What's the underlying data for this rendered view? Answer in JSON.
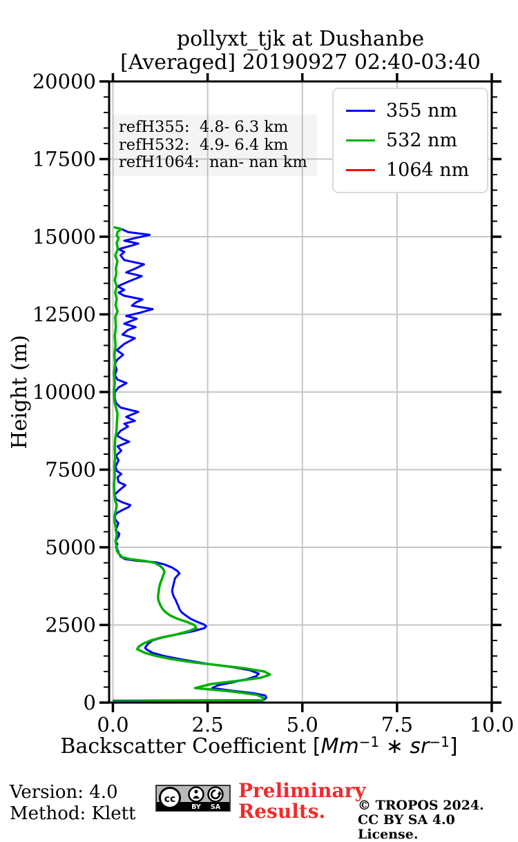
{
  "title": {
    "line1": "pollyxt_tjk at Dushanbe",
    "line2": "[Averaged] 20190927 02:40-03:40"
  },
  "annotation": {
    "lines": [
      "refH355:  4.8- 6.3 km",
      "refH532:  4.9- 6.4 km",
      "refH1064:  nan- nan km"
    ]
  },
  "legend": {
    "items": [
      {
        "label": "355 nm",
        "color": "#0000ff"
      },
      {
        "label": "532 nm",
        "color": "#00b000"
      },
      {
        "label": "1064 nm",
        "color": "#ff0000"
      }
    ]
  },
  "axes": {
    "ylabel": "Height (m)",
    "xlabel_prefix": "Backscatter Coefficient ",
    "xlabel_open": "[",
    "xlabel_m1": "Mm",
    "xlabel_e1": "−1",
    "xlabel_star": " ∗ ",
    "xlabel_m2": "sr",
    "xlabel_e2": "−1",
    "xlabel_close": "]"
  },
  "footer": {
    "version": "Version: 4.0",
    "method": "Method: Klett",
    "badge": "CC BY SA",
    "badge_by": "BY",
    "badge_sa": "SA",
    "prelim_line1": "Preliminary",
    "prelim_line2": "Results.",
    "copyright1": "© TROPOS 2024.",
    "copyright2": "CC BY SA 4.0 License."
  },
  "chart_data": {
    "type": "line",
    "title": "pollyxt_tjk at Dushanbe [Averaged] 20190927 02:40-03:40",
    "xlabel": "Backscatter Coefficient [Mm^-1 * sr^-1]",
    "ylabel": "Height (m)",
    "xlim": [
      -0.1,
      10.0
    ],
    "ylim": [
      0,
      20000
    ],
    "grid": true,
    "grid_color": "#c6c6c6",
    "legend_position": "upper right",
    "xticks": {
      "values": [
        0,
        2.5,
        5.0,
        7.5,
        10.0
      ],
      "labels": [
        "0.0",
        "2.5",
        "5.0",
        "7.5",
        "10.0"
      ]
    },
    "yticks": {
      "values": [
        0,
        2500,
        5000,
        7500,
        10000,
        12500,
        15000,
        17500,
        20000
      ],
      "labels": [
        "0",
        "2500",
        "5000",
        "7500",
        "10000",
        "12500",
        "15000",
        "17500",
        "20000"
      ]
    },
    "yminor_step": 500,
    "series": [
      {
        "name": "355 nm",
        "color": "#0000ff",
        "width": 3,
        "points_h_v": [
          [
            60,
            0.02
          ],
          [
            75,
            3.95
          ],
          [
            100,
            4.0
          ],
          [
            160,
            4.05
          ],
          [
            230,
            4.02
          ],
          [
            300,
            3.72
          ],
          [
            380,
            3.15
          ],
          [
            470,
            2.62
          ],
          [
            560,
            2.78
          ],
          [
            650,
            3.15
          ],
          [
            760,
            3.55
          ],
          [
            850,
            3.78
          ],
          [
            930,
            3.85
          ],
          [
            1040,
            3.62
          ],
          [
            1140,
            3.15
          ],
          [
            1250,
            2.5
          ],
          [
            1380,
            1.85
          ],
          [
            1500,
            1.35
          ],
          [
            1600,
            1.05
          ],
          [
            1700,
            0.9
          ],
          [
            1760,
            0.85
          ],
          [
            1820,
            0.88
          ],
          [
            1900,
            0.93
          ],
          [
            2000,
            1.05
          ],
          [
            2100,
            1.32
          ],
          [
            2200,
            1.72
          ],
          [
            2300,
            2.12
          ],
          [
            2400,
            2.42
          ],
          [
            2460,
            2.46
          ],
          [
            2520,
            2.4
          ],
          [
            2600,
            2.22
          ],
          [
            2700,
            2.05
          ],
          [
            2800,
            1.93
          ],
          [
            2900,
            1.82
          ],
          [
            3000,
            1.76
          ],
          [
            3100,
            1.73
          ],
          [
            3200,
            1.69
          ],
          [
            3300,
            1.66
          ],
          [
            3400,
            1.61
          ],
          [
            3500,
            1.58
          ],
          [
            3600,
            1.56
          ],
          [
            3700,
            1.58
          ],
          [
            3800,
            1.6
          ],
          [
            3900,
            1.62
          ],
          [
            4000,
            1.64
          ],
          [
            4100,
            1.71
          ],
          [
            4160,
            1.76
          ],
          [
            4250,
            1.69
          ],
          [
            4350,
            1.56
          ],
          [
            4450,
            1.36
          ],
          [
            4520,
            1.12
          ],
          [
            4570,
            0.62
          ],
          [
            4620,
            0.32
          ],
          [
            4700,
            0.2
          ],
          [
            4800,
            0.16
          ],
          [
            4900,
            0.13
          ],
          [
            5000,
            0.08
          ],
          [
            5100,
            0.12
          ],
          [
            5200,
            0.07
          ],
          [
            5350,
            0.15
          ],
          [
            5440,
            0.17
          ],
          [
            5550,
            0.07
          ],
          [
            5700,
            0.12
          ],
          [
            5780,
            0.14
          ],
          [
            5900,
            0.06
          ],
          [
            6000,
            0.05
          ],
          [
            6100,
            0.1
          ],
          [
            6200,
            0.25
          ],
          [
            6300,
            0.42
          ],
          [
            6360,
            0.46
          ],
          [
            6450,
            0.25
          ],
          [
            6550,
            0.08
          ],
          [
            6700,
            0.05
          ],
          [
            6850,
            0.18
          ],
          [
            7000,
            0.33
          ],
          [
            7100,
            0.15
          ],
          [
            7250,
            0.12
          ],
          [
            7360,
            0.22
          ],
          [
            7460,
            0.1
          ],
          [
            7600,
            0.07
          ],
          [
            7800,
            0.15
          ],
          [
            7950,
            0.08
          ],
          [
            8110,
            0.22
          ],
          [
            8250,
            0.12
          ],
          [
            8400,
            0.43
          ],
          [
            8480,
            0.27
          ],
          [
            8600,
            0.1
          ],
          [
            8750,
            0.2
          ],
          [
            8890,
            0.4
          ],
          [
            8980,
            0.3
          ],
          [
            9070,
            0.58
          ],
          [
            9200,
            0.35
          ],
          [
            9360,
            0.67
          ],
          [
            9500,
            0.2
          ],
          [
            9650,
            0.08
          ],
          [
            9800,
            0.05
          ],
          [
            10000,
            0.05
          ],
          [
            10150,
            0.15
          ],
          [
            10290,
            0.36
          ],
          [
            10400,
            0.12
          ],
          [
            10550,
            0.05
          ],
          [
            10710,
            0.1
          ],
          [
            10900,
            0.05
          ],
          [
            11050,
            0.12
          ],
          [
            11200,
            0.27
          ],
          [
            11350,
            0.1
          ],
          [
            11550,
            0.3
          ],
          [
            11730,
            0.58
          ],
          [
            11850,
            0.25
          ],
          [
            12000,
            0.4
          ],
          [
            12090,
            0.6
          ],
          [
            12200,
            0.3
          ],
          [
            12360,
            0.63
          ],
          [
            12450,
            0.35
          ],
          [
            12550,
            0.7
          ],
          [
            12670,
            1.05
          ],
          [
            12780,
            0.5
          ],
          [
            12880,
            0.6
          ],
          [
            12980,
            0.78
          ],
          [
            13100,
            0.3
          ],
          [
            13200,
            0.15
          ],
          [
            13290,
            0.3
          ],
          [
            13400,
            0.12
          ],
          [
            13550,
            0.4
          ],
          [
            13730,
            0.76
          ],
          [
            13850,
            0.35
          ],
          [
            13980,
            0.6
          ],
          [
            14110,
            0.82
          ],
          [
            14250,
            0.3
          ],
          [
            14400,
            0.2
          ],
          [
            14510,
            0.3
          ],
          [
            14600,
            0.15
          ],
          [
            14700,
            0.45
          ],
          [
            14780,
            0.67
          ],
          [
            14870,
            0.3
          ],
          [
            14960,
            0.6
          ],
          [
            15060,
            0.97
          ],
          [
            15150,
            0.4
          ],
          [
            15250,
            0.22
          ],
          [
            15300,
            0.05
          ]
        ]
      },
      {
        "name": "532 nm",
        "color": "#00b000",
        "width": 3.5,
        "points_h_v": [
          [
            40,
            0.02
          ],
          [
            55,
            3.9
          ],
          [
            80,
            3.95
          ],
          [
            150,
            3.98
          ],
          [
            250,
            3.8
          ],
          [
            350,
            3.2
          ],
          [
            470,
            2.17
          ],
          [
            600,
            2.6
          ],
          [
            700,
            3.3
          ],
          [
            800,
            3.9
          ],
          [
            900,
            4.15
          ],
          [
            1000,
            4.0
          ],
          [
            1100,
            3.5
          ],
          [
            1200,
            2.8
          ],
          [
            1300,
            2.1
          ],
          [
            1400,
            1.55
          ],
          [
            1500,
            1.15
          ],
          [
            1600,
            0.85
          ],
          [
            1720,
            0.64
          ],
          [
            1800,
            0.68
          ],
          [
            1900,
            0.8
          ],
          [
            2000,
            1.0
          ],
          [
            2100,
            1.3
          ],
          [
            2200,
            1.7
          ],
          [
            2300,
            2.0
          ],
          [
            2400,
            2.2
          ],
          [
            2500,
            2.15
          ],
          [
            2600,
            1.95
          ],
          [
            2700,
            1.7
          ],
          [
            2800,
            1.52
          ],
          [
            2900,
            1.4
          ],
          [
            3000,
            1.32
          ],
          [
            3100,
            1.27
          ],
          [
            3200,
            1.23
          ],
          [
            3300,
            1.2
          ],
          [
            3400,
            1.19
          ],
          [
            3500,
            1.2
          ],
          [
            3600,
            1.21
          ],
          [
            3700,
            1.22
          ],
          [
            3800,
            1.24
          ],
          [
            3900,
            1.27
          ],
          [
            4000,
            1.3
          ],
          [
            4100,
            1.33
          ],
          [
            4200,
            1.36
          ],
          [
            4300,
            1.33
          ],
          [
            4400,
            1.25
          ],
          [
            4500,
            1.1
          ],
          [
            4560,
            0.85
          ],
          [
            4620,
            0.45
          ],
          [
            4680,
            0.25
          ],
          [
            4800,
            0.15
          ],
          [
            4900,
            0.1
          ],
          [
            5000,
            0.1
          ],
          [
            5200,
            0.07
          ],
          [
            5400,
            0.1
          ],
          [
            5600,
            0.08
          ],
          [
            5800,
            0.05
          ],
          [
            6000,
            0.04
          ],
          [
            6200,
            0.08
          ],
          [
            6360,
            0.1
          ],
          [
            6500,
            0.06
          ],
          [
            6700,
            0.04
          ],
          [
            7000,
            0.03
          ],
          [
            7300,
            0.05
          ],
          [
            7600,
            0.04
          ],
          [
            7900,
            0.06
          ],
          [
            8200,
            0.05
          ],
          [
            8500,
            0.06
          ],
          [
            8700,
            0.09
          ],
          [
            8900,
            0.1
          ],
          [
            9100,
            0.11
          ],
          [
            9300,
            0.12
          ],
          [
            9500,
            0.08
          ],
          [
            9700,
            0.04
          ],
          [
            10000,
            0.03
          ],
          [
            10300,
            0.05
          ],
          [
            10600,
            0.03
          ],
          [
            10900,
            0.06
          ],
          [
            11200,
            0.04
          ],
          [
            11500,
            0.07
          ],
          [
            11800,
            0.05
          ],
          [
            12100,
            0.08
          ],
          [
            12400,
            0.06
          ],
          [
            12600,
            0.12
          ],
          [
            12800,
            0.07
          ],
          [
            13000,
            0.1
          ],
          [
            13200,
            0.06
          ],
          [
            13400,
            0.1
          ],
          [
            13600,
            0.05
          ],
          [
            13800,
            0.09
          ],
          [
            14000,
            0.08
          ],
          [
            14200,
            0.12
          ],
          [
            14400,
            0.06
          ],
          [
            14600,
            0.13
          ],
          [
            14800,
            0.1
          ],
          [
            14950,
            0.15
          ],
          [
            15050,
            0.1
          ],
          [
            15150,
            0.12
          ],
          [
            15250,
            0.22
          ],
          [
            15300,
            0.05
          ]
        ]
      },
      {
        "name": "1064 nm",
        "color": "#ff0000",
        "width": 3,
        "points_h_v": []
      }
    ]
  }
}
